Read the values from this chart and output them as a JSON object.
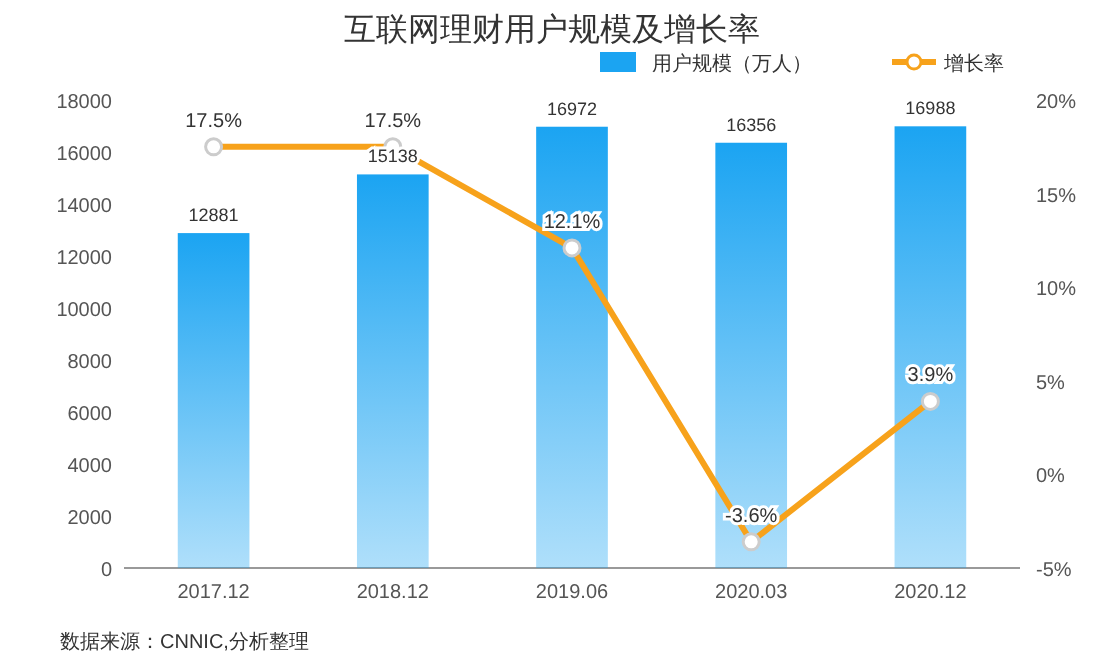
{
  "chart_data": {
    "type": "bar",
    "title": "互联网理财用户规模及增长率",
    "categories": [
      "2017.12",
      "2018.12",
      "2019.06",
      "2020.03",
      "2020.12"
    ],
    "series": [
      {
        "name": "用户规模（万人）",
        "color": "#1ba4f2",
        "values": [
          12881,
          15138,
          16972,
          16356,
          16988
        ],
        "value_labels": [
          "12881",
          "15138",
          "16972",
          "16356",
          "16988"
        ]
      },
      {
        "name": "增长率",
        "type": "line",
        "axis": "y2",
        "color": "#f7a21b",
        "marker": "circle",
        "values": [
          17.5,
          17.5,
          12.1,
          -3.6,
          3.9
        ],
        "value_labels": [
          "17.5%",
          "17.5%",
          "12.1%",
          "-3.6%",
          "3.9%"
        ]
      }
    ],
    "ylim": [
      0,
      18000
    ],
    "yticks": [
      0,
      2000,
      4000,
      6000,
      8000,
      10000,
      12000,
      14000,
      16000,
      18000
    ],
    "y2lim": [
      -5,
      20
    ],
    "y2ticks": [
      {
        "value": -5,
        "label": "-5%"
      },
      {
        "value": 0,
        "label": "0%"
      },
      {
        "value": 5,
        "label": "5%"
      },
      {
        "value": 10,
        "label": "10%"
      },
      {
        "value": 15,
        "label": "15%"
      },
      {
        "value": 20,
        "label": "20%"
      }
    ],
    "legend": "top right",
    "annotations": [
      "数据来源：CNNIC,分析整理"
    ]
  }
}
